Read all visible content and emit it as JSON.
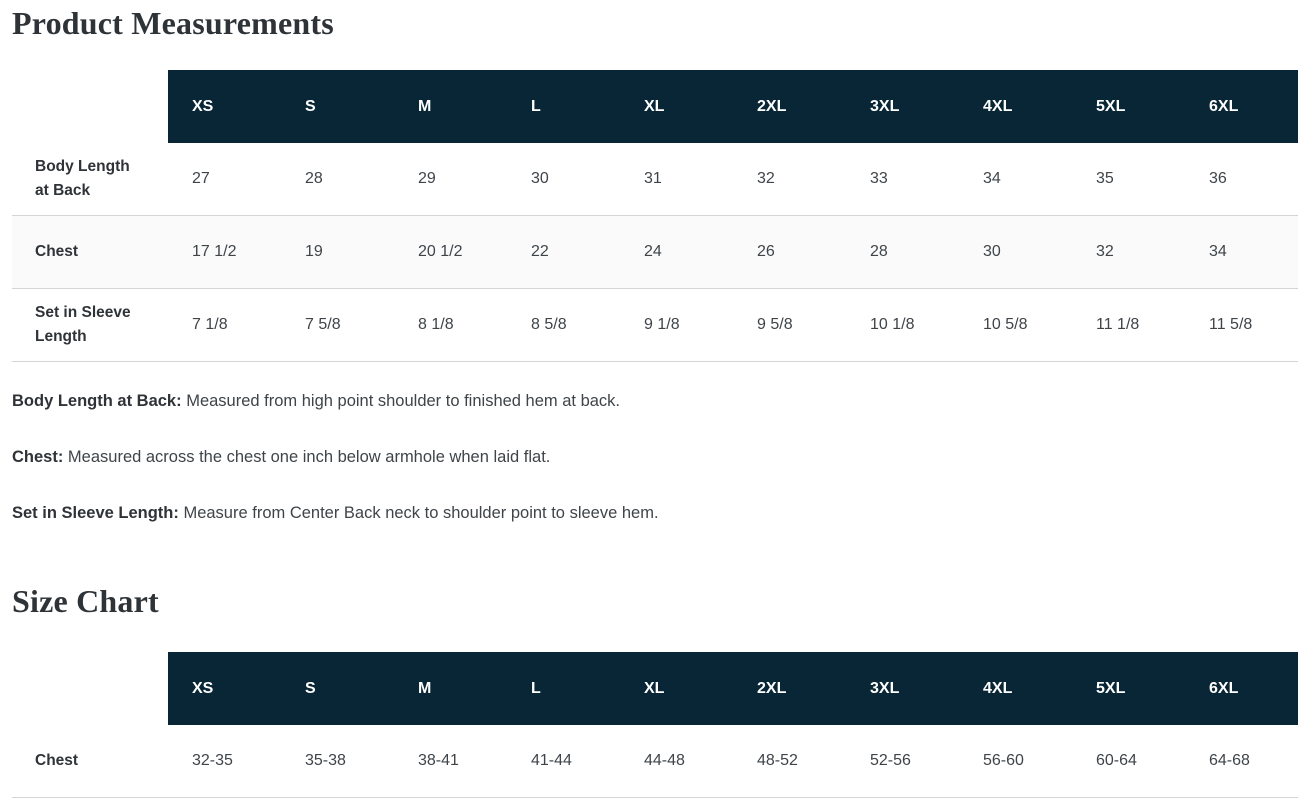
{
  "page": {
    "measurements_title": "Product Measurements",
    "size_chart_title": "Size Chart"
  },
  "colors": {
    "header_bg": "#082636",
    "header_text": "#ffffff",
    "stripe_bg": "#fafafa",
    "border": "#d4d4d4",
    "heading_text": "#2e3338",
    "body_text": "#3f4449",
    "label_text": "#2f3338"
  },
  "measurements_table": {
    "columns": [
      "XS",
      "S",
      "M",
      "L",
      "XL",
      "2XL",
      "3XL",
      "4XL",
      "5XL",
      "6XL"
    ],
    "rows": [
      {
        "label": "Body Length at Back",
        "striped": false,
        "values": [
          "27",
          "28",
          "29",
          "30",
          "31",
          "32",
          "33",
          "34",
          "35",
          "36"
        ]
      },
      {
        "label": "Chest",
        "striped": true,
        "values": [
          "17 1/2",
          "19",
          "20 1/2",
          "22",
          "24",
          "26",
          "28",
          "30",
          "32",
          "34"
        ]
      },
      {
        "label": "Set in Sleeve Length",
        "striped": false,
        "values": [
          "7 1/8",
          "7 5/8",
          "8 1/8",
          "8 5/8",
          "9 1/8",
          "9 5/8",
          "10 1/8",
          "10 5/8",
          "11 1/8",
          "11 5/8"
        ]
      }
    ]
  },
  "footnotes": [
    {
      "term": "Body Length at Back:",
      "definition": " Measured from high point shoulder to finished hem at back."
    },
    {
      "term": "Chest:",
      "definition": " Measured across the chest one inch below armhole when laid flat."
    },
    {
      "term": "Set in Sleeve Length:",
      "definition": " Measure from Center Back neck to shoulder point to sleeve hem."
    }
  ],
  "size_chart_table": {
    "columns": [
      "XS",
      "S",
      "M",
      "L",
      "XL",
      "2XL",
      "3XL",
      "4XL",
      "5XL",
      "6XL"
    ],
    "rows": [
      {
        "label": "Chest",
        "striped": false,
        "values": [
          "32-35",
          "35-38",
          "38-41",
          "41-44",
          "44-48",
          "48-52",
          "52-56",
          "56-60",
          "60-64",
          "64-68"
        ]
      }
    ]
  }
}
